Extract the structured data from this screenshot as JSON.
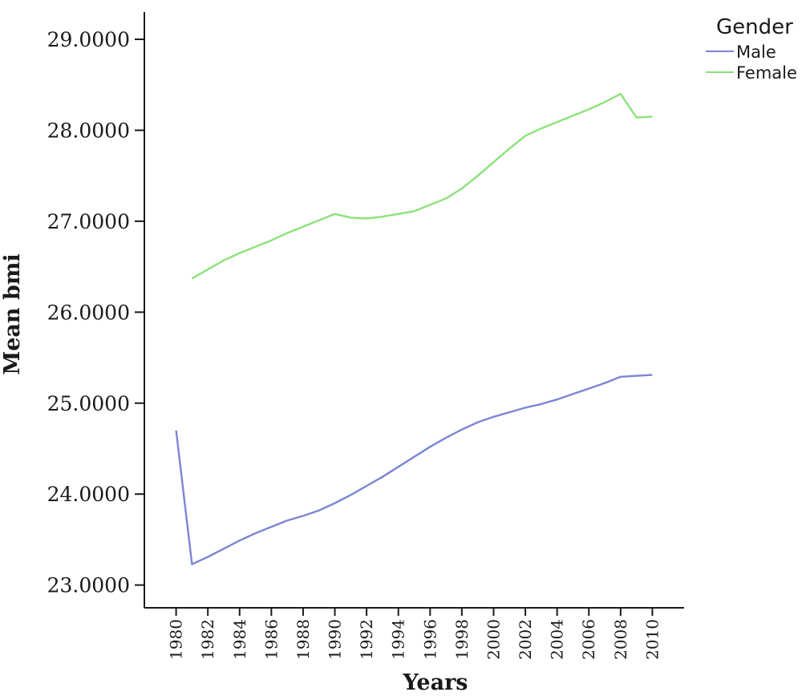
{
  "chart_data": {
    "type": "line",
    "xlabel": "Years",
    "ylabel": "Mean bmi",
    "xlim": [
      1978.0,
      2012.0
    ],
    "ylim": [
      22.75,
      29.3
    ],
    "y_ticks": [
      "23.0000",
      "24.0000",
      "25.0000",
      "26.0000",
      "27.0000",
      "28.0000",
      "29.0000"
    ],
    "x_ticks": [
      "1980",
      "1982",
      "1984",
      "1986",
      "1988",
      "1990",
      "1992",
      "1994",
      "1996",
      "1998",
      "2000",
      "2002",
      "2004",
      "2006",
      "2008",
      "2010"
    ],
    "grid": false,
    "legend": {
      "title": "Gender",
      "position": "top-right"
    },
    "series": [
      {
        "name": "Male",
        "color": "#7b86d4",
        "x": [
          1980,
          1981,
          1982,
          1983,
          1984,
          1985,
          1986,
          1987,
          1988,
          1989,
          1990,
          1991,
          1992,
          1993,
          1994,
          1995,
          1996,
          1997,
          1998,
          1999,
          2000,
          2001,
          2002,
          2003,
          2004,
          2005,
          2006,
          2007,
          2008,
          2009,
          2010
        ],
        "y": [
          24.7,
          23.23,
          23.31,
          23.4,
          23.49,
          23.57,
          23.64,
          23.71,
          23.76,
          23.82,
          23.9,
          23.99,
          24.09,
          24.19,
          24.3,
          24.41,
          24.52,
          24.62,
          24.71,
          24.79,
          24.85,
          24.9,
          24.95,
          24.99,
          25.04,
          25.1,
          25.16,
          25.22,
          25.29,
          25.3,
          25.31
        ]
      },
      {
        "name": "Female",
        "color": "#8be37a",
        "x": [
          1981,
          1982,
          1983,
          1984,
          1985,
          1986,
          1987,
          1988,
          1989,
          1990,
          1991,
          1992,
          1993,
          1994,
          1995,
          1996,
          1997,
          1998,
          1999,
          2000,
          2001,
          2002,
          2003,
          2004,
          2005,
          2006,
          2007,
          2008,
          2009,
          2010
        ],
        "y": [
          26.37,
          26.47,
          26.57,
          26.65,
          26.72,
          26.79,
          26.87,
          26.94,
          27.01,
          27.08,
          27.04,
          27.03,
          27.05,
          27.08,
          27.11,
          27.18,
          27.25,
          27.36,
          27.5,
          27.65,
          27.8,
          27.94,
          28.02,
          28.09,
          28.16,
          28.23,
          28.31,
          28.4,
          28.14,
          28.15
        ]
      }
    ]
  }
}
